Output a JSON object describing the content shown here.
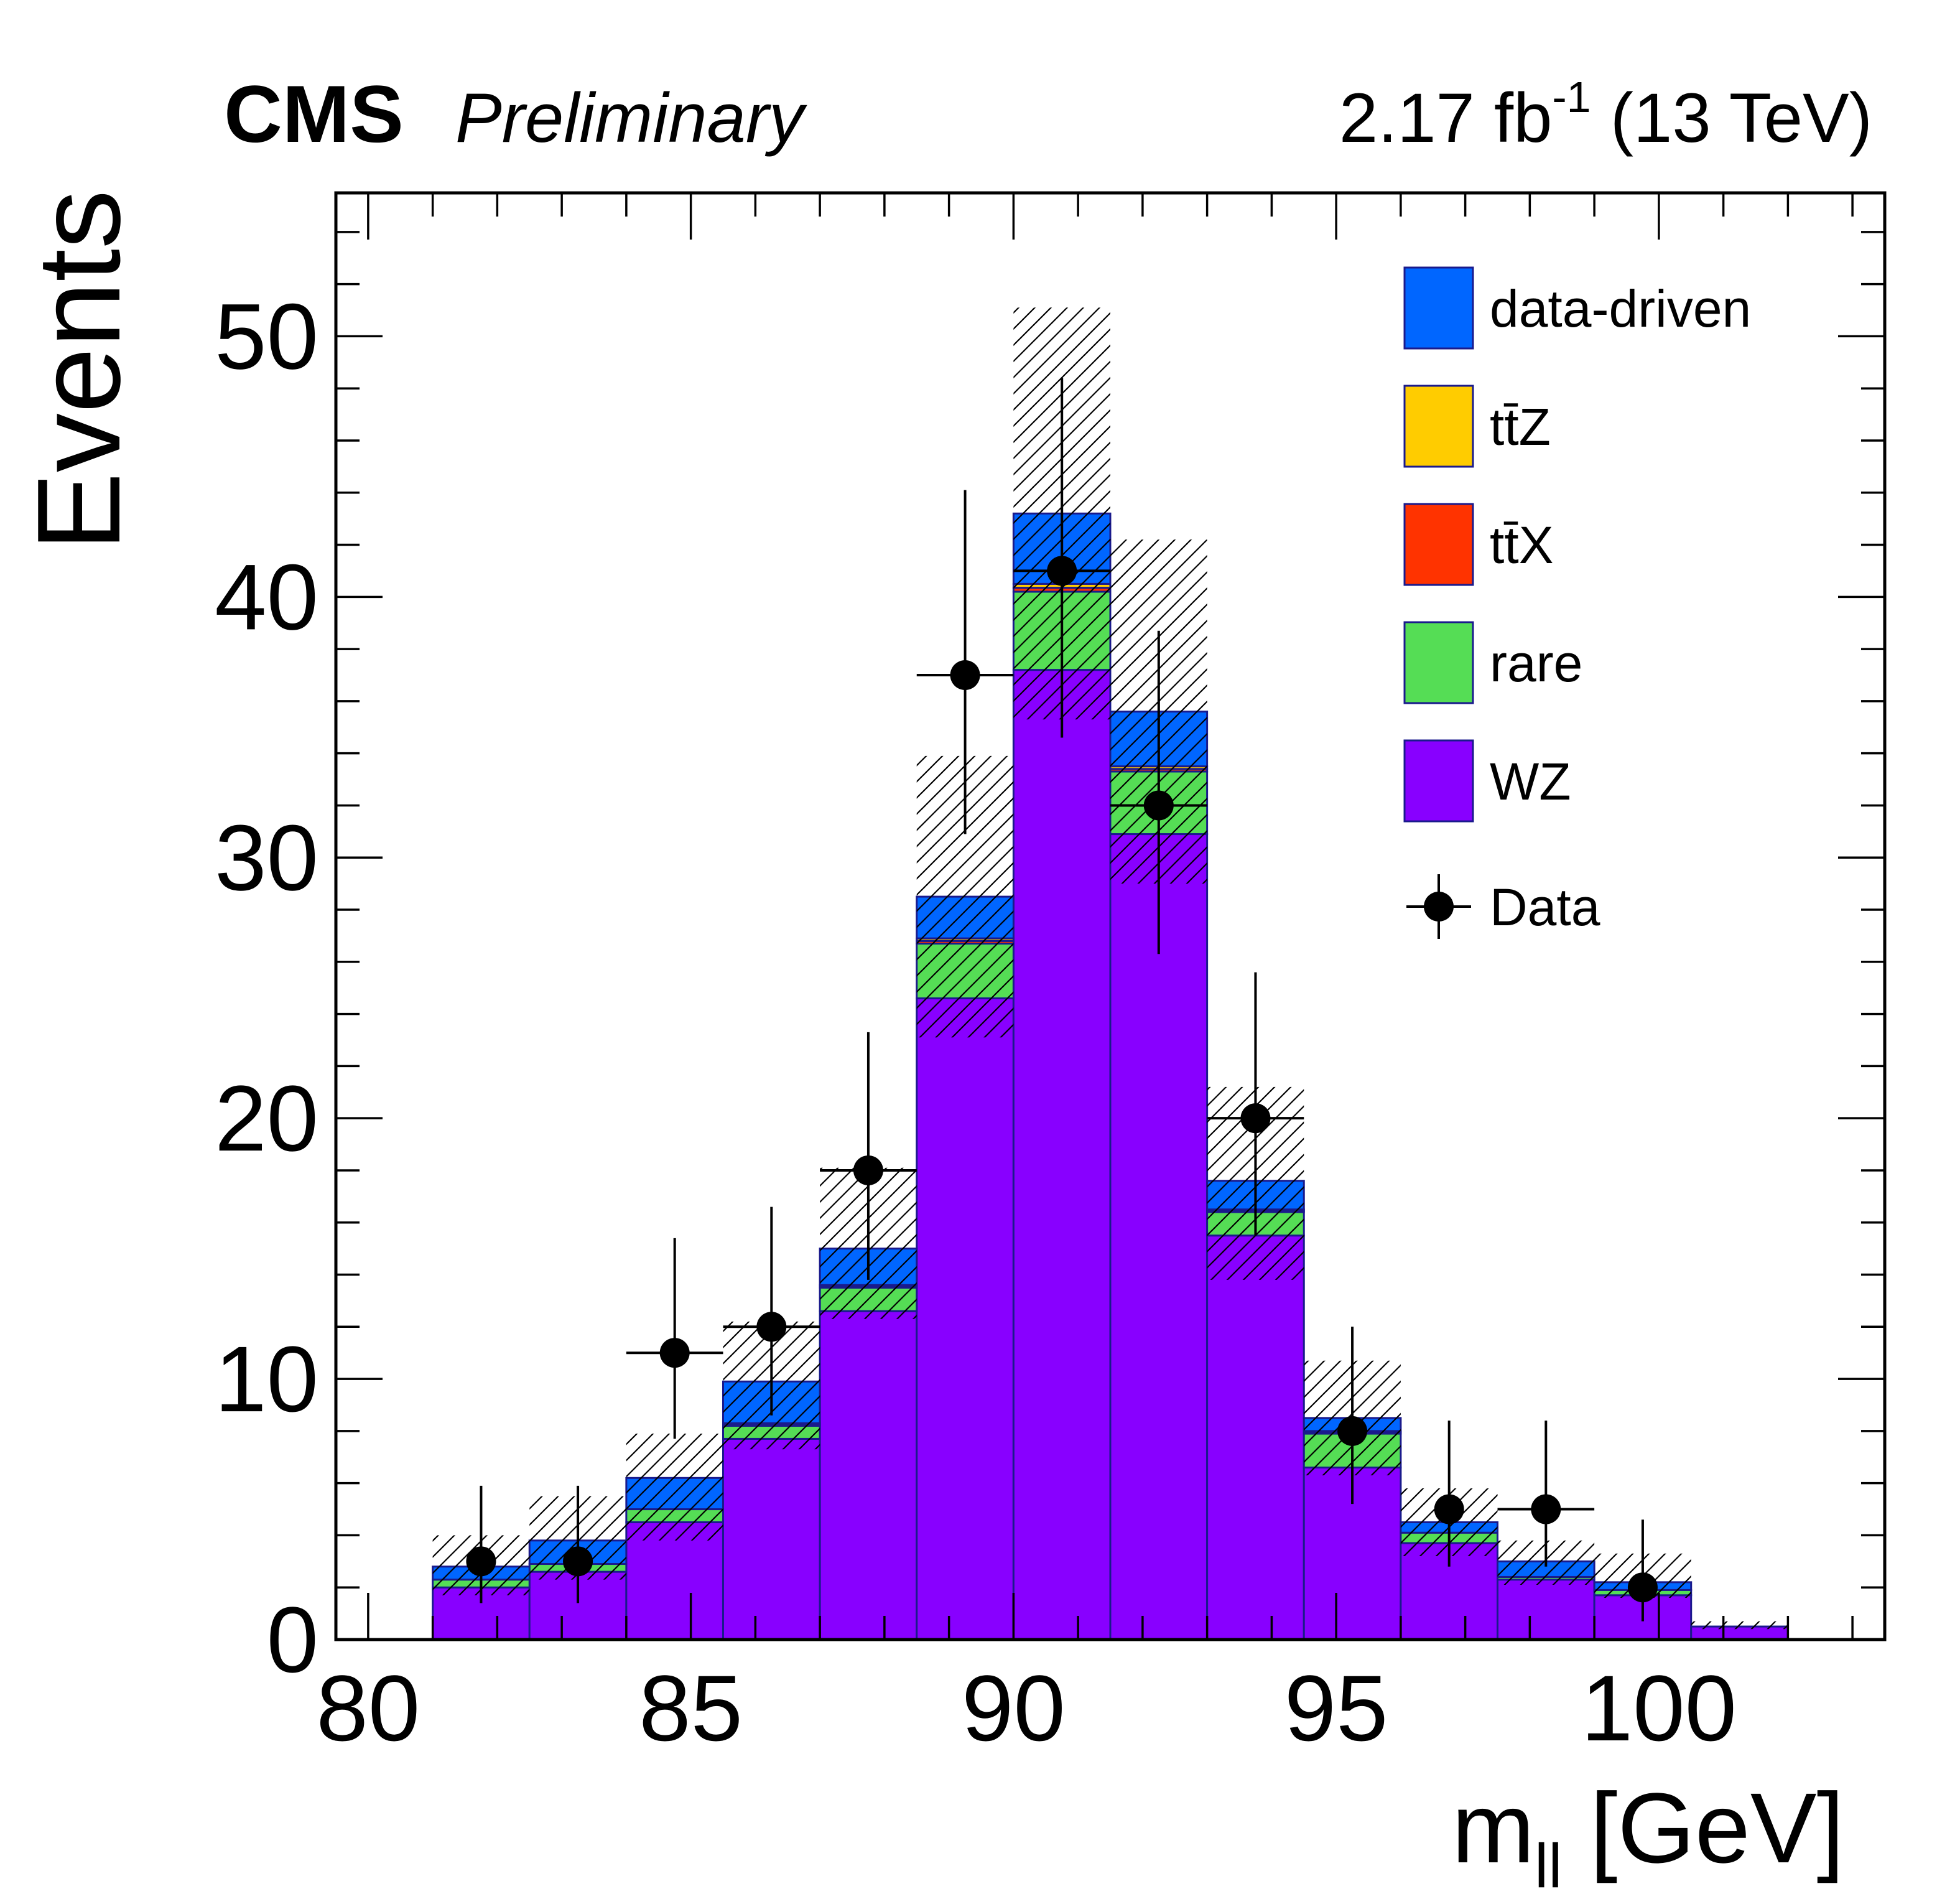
{
  "header": {
    "brand": "CMS",
    "status": "Preliminary",
    "lumi_prefix": "2.17 fb",
    "lumi_exponent": "-1",
    "lumi_suffix": " (13 TeV)"
  },
  "colors": {
    "data-driven": "#0066ff",
    "ttZ": "#ffcc00",
    "ttX": "#ff3300",
    "rare": "#55dd55",
    "WZ": "#8800ff",
    "outline": "#1a1a8c",
    "data_points": "#000000"
  },
  "chart_data": {
    "type": "bar",
    "stacked": true,
    "xlabel_main": "m",
    "xlabel_sub": "ll",
    "xlabel_unit": " [GeV]",
    "ylabel": "Events",
    "xlim": [
      79.5,
      103.5
    ],
    "ylim": [
      0,
      55.5
    ],
    "x_ticks": [
      "80",
      "85",
      "90",
      "95",
      "100"
    ],
    "x_tick_values": [
      80,
      85,
      90,
      95,
      100
    ],
    "y_ticks": [
      "0",
      "10",
      "20",
      "30",
      "40",
      "50"
    ],
    "y_tick_values": [
      0,
      10,
      20,
      30,
      40,
      50
    ],
    "legend_position": "top-right",
    "bin_edges": [
      81,
      82.5,
      84,
      85.5,
      87,
      88.5,
      90,
      91.5,
      93,
      94.5,
      96,
      97.5,
      99,
      100.5,
      102
    ],
    "series": [
      {
        "key": "WZ",
        "label": "WZ",
        "values": [
          2.0,
          2.6,
          4.5,
          7.7,
          12.6,
          24.6,
          37.2,
          30.9,
          15.5,
          6.6,
          3.7,
          2.3,
          1.7,
          0.5
        ]
      },
      {
        "key": "rare",
        "label": "rare",
        "values": [
          0.3,
          0.3,
          0.5,
          0.5,
          0.9,
          2.1,
          3.0,
          2.4,
          0.9,
          1.3,
          0.4,
          0.1,
          0.2,
          0.0
        ]
      },
      {
        "key": "ttX",
        "label": "tt̄X",
        "values": [
          0.0,
          0.0,
          0.0,
          0.05,
          0.05,
          0.1,
          0.15,
          0.1,
          0.05,
          0.05,
          0.0,
          0.0,
          0.0,
          0.0
        ]
      },
      {
        "key": "ttZ",
        "label": "tt̄Z",
        "values": [
          0.0,
          0.0,
          0.0,
          0.05,
          0.05,
          0.1,
          0.15,
          0.1,
          0.05,
          0.05,
          0.0,
          0.0,
          0.0,
          0.0
        ]
      },
      {
        "key": "data-driven",
        "label": "data-driven",
        "values": [
          0.5,
          0.9,
          1.2,
          1.6,
          1.4,
          1.6,
          2.7,
          2.1,
          1.1,
          0.5,
          0.4,
          0.6,
          0.3,
          0.0
        ]
      }
    ],
    "uncertainty": {
      "down": [
        1.7,
        2.3,
        3.8,
        7.3,
        12.3,
        23.1,
        35.3,
        29.0,
        13.8,
        6.3,
        3.2,
        2.1,
        1.6,
        0.4
      ],
      "up": [
        4.0,
        5.5,
        7.9,
        12.2,
        18.1,
        33.9,
        51.1,
        42.2,
        21.2,
        10.7,
        5.8,
        3.8,
        3.3,
        0.7
      ]
    },
    "data": {
      "label": "Data",
      "x": [
        81.75,
        83.25,
        84.75,
        86.25,
        87.75,
        89.25,
        90.75,
        92.25,
        93.75,
        95.25,
        96.75,
        98.25,
        99.75
      ],
      "y": [
        3,
        3,
        11,
        12,
        18,
        37,
        41,
        32,
        20,
        8,
        5,
        5,
        2
      ],
      "err_low": [
        1.6,
        1.6,
        3.3,
        3.4,
        4.2,
        6.1,
        6.4,
        5.7,
        4.5,
        2.8,
        2.2,
        2.2,
        1.3
      ],
      "err_high": [
        2.9,
        2.9,
        4.4,
        4.6,
        5.3,
        7.1,
        7.4,
        6.7,
        5.6,
        4.0,
        3.4,
        3.4,
        2.6
      ],
      "x_half_width": [
        0,
        0,
        0.75,
        0.75,
        0.75,
        0.75,
        0.75,
        0.75,
        0.75,
        0,
        0,
        0.75,
        0
      ]
    }
  }
}
